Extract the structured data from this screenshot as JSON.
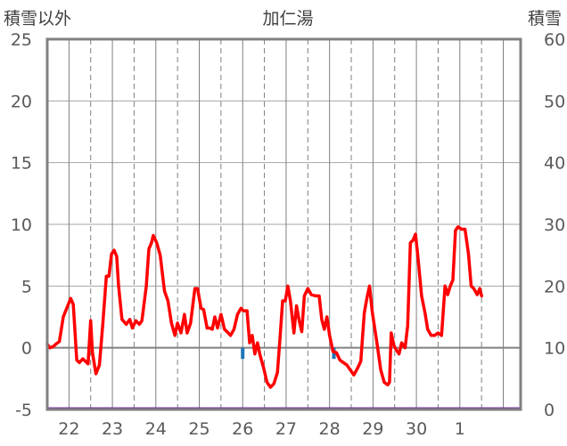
{
  "chart_data": {
    "type": "line",
    "title": "加仁湯",
    "left_axis_label": "積雪以外",
    "right_axis_label": "積雪",
    "y_left": {
      "min": -5,
      "max": 25,
      "ticks": [
        25,
        20,
        15,
        10,
        5,
        0,
        -5
      ]
    },
    "y_right": {
      "min": 0,
      "max": 60,
      "ticks": [
        60,
        50,
        40,
        30,
        20,
        10,
        0
      ]
    },
    "x_day_labels": [
      "22",
      "23",
      "24",
      "25",
      "26",
      "27",
      "28",
      "29",
      "30",
      "1"
    ],
    "x_range_days": [
      -0.5,
      10.4
    ],
    "grid": {
      "horizontal": "solid",
      "vertical_midnight": "solid",
      "vertical_noon": "dashed"
    },
    "colors": {
      "temperature": "#ff0000",
      "precipitation": "#1f77b4",
      "snow": "#7030a0",
      "frame": "#808080",
      "zero_line": "#808080"
    },
    "series": [
      {
        "kind": "temperature",
        "axis": "left",
        "points": [
          [
            -0.5,
            0.3
          ],
          [
            -0.44,
            0.0
          ],
          [
            -0.36,
            0.1
          ],
          [
            -0.3,
            0.3
          ],
          [
            -0.22,
            0.5
          ],
          [
            -0.13,
            2.5
          ],
          [
            -0.04,
            3.3
          ],
          [
            0.04,
            4.0
          ],
          [
            0.1,
            3.5
          ],
          [
            0.18,
            -1.0
          ],
          [
            0.24,
            -1.2
          ],
          [
            0.32,
            -0.9
          ],
          [
            0.44,
            -1.3
          ],
          [
            0.5,
            2.2
          ],
          [
            0.54,
            -0.4
          ],
          [
            0.62,
            -2.1
          ],
          [
            0.7,
            -1.4
          ],
          [
            0.78,
            2.0
          ],
          [
            0.86,
            5.8
          ],
          [
            0.92,
            5.8
          ],
          [
            0.98,
            7.6
          ],
          [
            1.04,
            7.9
          ],
          [
            1.1,
            7.4
          ],
          [
            1.14,
            5.1
          ],
          [
            1.22,
            2.3
          ],
          [
            1.32,
            1.9
          ],
          [
            1.4,
            2.3
          ],
          [
            1.46,
            1.6
          ],
          [
            1.54,
            2.2
          ],
          [
            1.62,
            1.9
          ],
          [
            1.68,
            2.2
          ],
          [
            1.78,
            5.0
          ],
          [
            1.84,
            8.0
          ],
          [
            1.9,
            8.5
          ],
          [
            1.94,
            9.1
          ],
          [
            2.02,
            8.5
          ],
          [
            2.1,
            7.5
          ],
          [
            2.2,
            4.6
          ],
          [
            2.28,
            3.8
          ],
          [
            2.36,
            2.0
          ],
          [
            2.44,
            1.0
          ],
          [
            2.5,
            2.0
          ],
          [
            2.58,
            1.2
          ],
          [
            2.66,
            2.7
          ],
          [
            2.72,
            1.2
          ],
          [
            2.8,
            2.0
          ],
          [
            2.9,
            4.8
          ],
          [
            2.96,
            4.8
          ],
          [
            3.04,
            3.2
          ],
          [
            3.1,
            3.1
          ],
          [
            3.18,
            1.6
          ],
          [
            3.24,
            1.6
          ],
          [
            3.3,
            1.5
          ],
          [
            3.36,
            2.5
          ],
          [
            3.42,
            1.6
          ],
          [
            3.5,
            2.7
          ],
          [
            3.58,
            1.5
          ],
          [
            3.64,
            1.3
          ],
          [
            3.72,
            1.0
          ],
          [
            3.8,
            1.5
          ],
          [
            3.88,
            2.7
          ],
          [
            3.96,
            3.2
          ],
          [
            4.02,
            3.0
          ],
          [
            4.1,
            3.0
          ],
          [
            4.16,
            0.4
          ],
          [
            4.22,
            1.0
          ],
          [
            4.28,
            -0.5
          ],
          [
            4.34,
            0.4
          ],
          [
            4.4,
            -0.6
          ],
          [
            4.48,
            -1.6
          ],
          [
            4.56,
            -2.8
          ],
          [
            4.64,
            -3.2
          ],
          [
            4.72,
            -2.9
          ],
          [
            4.8,
            -2.0
          ],
          [
            4.86,
            0.8
          ],
          [
            4.92,
            3.8
          ],
          [
            4.98,
            3.8
          ],
          [
            5.04,
            5.0
          ],
          [
            5.1,
            3.8
          ],
          [
            5.18,
            1.2
          ],
          [
            5.24,
            3.4
          ],
          [
            5.3,
            2.2
          ],
          [
            5.36,
            1.3
          ],
          [
            5.42,
            4.2
          ],
          [
            5.5,
            4.8
          ],
          [
            5.58,
            4.3
          ],
          [
            5.68,
            4.2
          ],
          [
            5.76,
            4.2
          ],
          [
            5.82,
            2.3
          ],
          [
            5.88,
            1.5
          ],
          [
            5.94,
            2.5
          ],
          [
            6.0,
            1.0
          ],
          [
            6.08,
            -0.3
          ],
          [
            6.16,
            -0.4
          ],
          [
            6.24,
            -1.0
          ],
          [
            6.32,
            -1.2
          ],
          [
            6.4,
            -1.4
          ],
          [
            6.48,
            -1.8
          ],
          [
            6.56,
            -2.2
          ],
          [
            6.64,
            -1.7
          ],
          [
            6.72,
            -1.1
          ],
          [
            6.8,
            2.8
          ],
          [
            6.86,
            4.0
          ],
          [
            6.92,
            5.0
          ],
          [
            6.98,
            3.0
          ],
          [
            7.04,
            1.6
          ],
          [
            7.1,
            0.2
          ],
          [
            7.18,
            -1.8
          ],
          [
            7.26,
            -2.8
          ],
          [
            7.34,
            -3.0
          ],
          [
            7.38,
            -2.8
          ],
          [
            7.42,
            1.2
          ],
          [
            7.48,
            0.2
          ],
          [
            7.54,
            -0.2
          ],
          [
            7.6,
            -0.5
          ],
          [
            7.66,
            0.4
          ],
          [
            7.74,
            0.0
          ],
          [
            7.8,
            1.8
          ],
          [
            7.86,
            8.5
          ],
          [
            7.92,
            8.7
          ],
          [
            7.98,
            9.2
          ],
          [
            8.04,
            7.2
          ],
          [
            8.12,
            4.2
          ],
          [
            8.2,
            2.8
          ],
          [
            8.26,
            1.5
          ],
          [
            8.34,
            1.0
          ],
          [
            8.42,
            1.0
          ],
          [
            8.5,
            1.2
          ],
          [
            8.58,
            1.0
          ],
          [
            8.66,
            5.0
          ],
          [
            8.72,
            4.3
          ],
          [
            8.78,
            5.0
          ],
          [
            8.84,
            5.5
          ],
          [
            8.9,
            9.5
          ],
          [
            8.96,
            9.8
          ],
          [
            9.04,
            9.6
          ],
          [
            9.12,
            9.6
          ],
          [
            9.2,
            7.6
          ],
          [
            9.26,
            5.0
          ],
          [
            9.32,
            4.8
          ],
          [
            9.4,
            4.3
          ],
          [
            9.46,
            4.8
          ],
          [
            9.5,
            4.2
          ]
        ]
      },
      {
        "kind": "precipitation",
        "axis": "left",
        "bars": [
          [
            4.0,
            -0.9
          ],
          [
            6.1,
            -0.9
          ]
        ]
      },
      {
        "kind": "snow",
        "axis": "right",
        "points": [
          [
            -0.5,
            0.0
          ],
          [
            10.4,
            0.0
          ]
        ]
      }
    ]
  }
}
